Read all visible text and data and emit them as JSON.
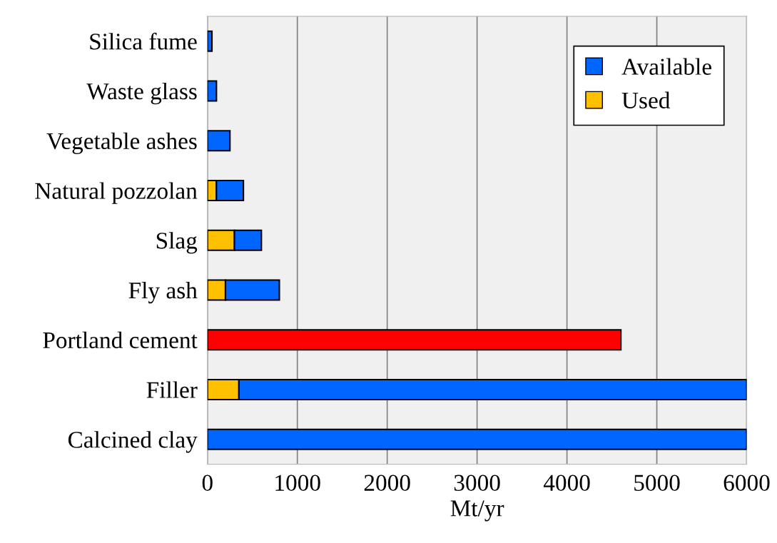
{
  "chart_data": {
    "type": "bar",
    "orientation": "horizontal",
    "stacked": true,
    "xlabel": "Mt/yr",
    "categories": [
      "Silica fume",
      "Waste glass",
      "Vegetable ashes",
      "Natural pozzolan",
      "Slag",
      "Fly ash",
      "Portland cement",
      "Filler",
      "Calcined clay"
    ],
    "series": [
      {
        "name": "Used",
        "color": "#ffc000",
        "values": [
          null,
          null,
          null,
          100,
          300,
          200,
          null,
          350,
          null
        ]
      },
      {
        "name": "Available",
        "color": "#0066ff",
        "values": [
          50,
          100,
          250,
          300,
          300,
          600,
          null,
          5650,
          6000
        ]
      },
      {
        "color": "#ff0000",
        "values": [
          null,
          null,
          null,
          null,
          null,
          null,
          4600,
          null,
          null
        ]
      }
    ],
    "xlim": [
      0,
      6000
    ],
    "xticks": [
      0,
      1000,
      2000,
      3000,
      4000,
      5000,
      6000
    ],
    "grid": "x",
    "legend": "top right"
  }
}
